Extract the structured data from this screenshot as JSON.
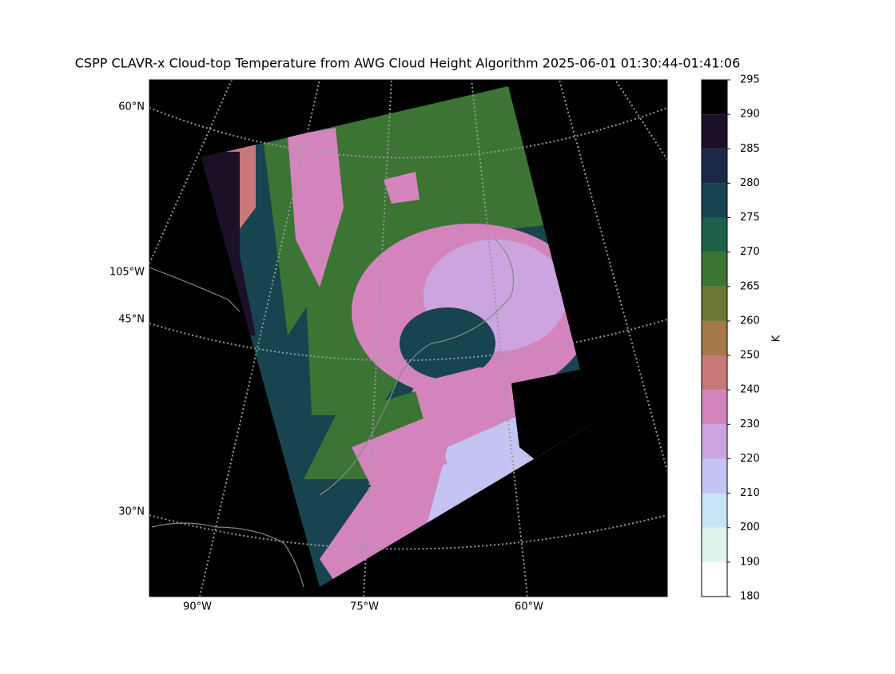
{
  "title": "CSPP CLAVR-x Cloud-top Temperature from AWG Cloud Height Algorithm 2025-06-01 01:30:44-01:41:06",
  "map": {
    "lat_labels": [
      "60°N",
      "105°W",
      "45°N",
      "30°N"
    ],
    "lon_labels": [
      "90°W",
      "75°W",
      "60°W"
    ]
  },
  "colorbar": {
    "label": "K",
    "ticks": [
      180,
      190,
      200,
      210,
      220,
      230,
      240,
      250,
      260,
      265,
      270,
      275,
      280,
      285,
      290,
      295
    ],
    "colors": [
      "#ffffff",
      "#e0f4ec",
      "#c8e4f4",
      "#c4c4f4",
      "#cca4e0",
      "#d484bc",
      "#c87878",
      "#a47848",
      "#6c7834",
      "#3c7434",
      "#1c6048",
      "#184450",
      "#1c2848",
      "#1c1028",
      "#000000"
    ]
  }
}
